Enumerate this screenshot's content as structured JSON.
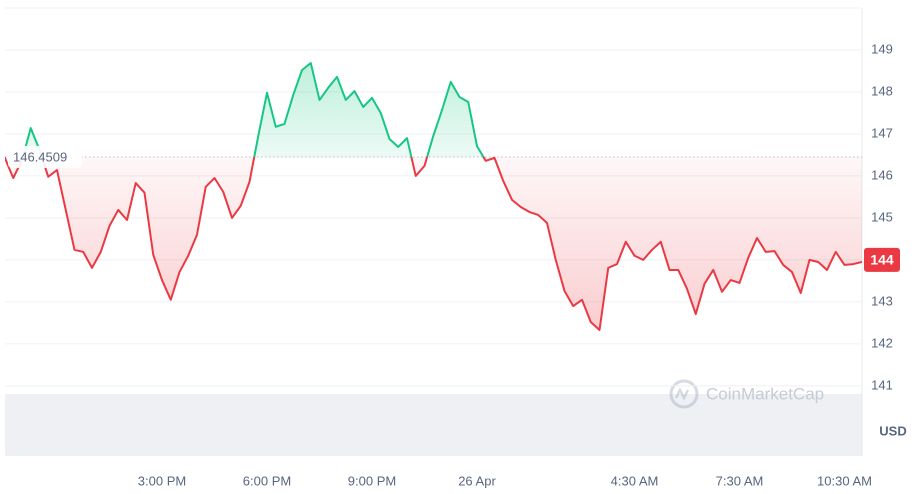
{
  "chart_data": {
    "type": "line",
    "categories": [
      null,
      null,
      null,
      null,
      null,
      null,
      null,
      null,
      null,
      null,
      null,
      null,
      null,
      null,
      null,
      null,
      null,
      null,
      "3:00 PM",
      null,
      null,
      null,
      null,
      null,
      null,
      null,
      null,
      null,
      null,
      null,
      "6:00 PM",
      null,
      null,
      null,
      null,
      null,
      null,
      null,
      null,
      null,
      null,
      null,
      "9:00 PM",
      null,
      null,
      null,
      null,
      null,
      null,
      null,
      null,
      null,
      null,
      null,
      "26 Apr",
      null,
      null,
      null,
      null,
      null,
      null,
      null,
      null,
      null,
      null,
      null,
      null,
      null,
      null,
      null,
      null,
      null,
      "4:30 AM",
      null,
      null,
      null,
      null,
      null,
      null,
      null,
      null,
      null,
      null,
      null,
      "7:30 AM",
      null,
      null,
      null,
      null,
      null,
      null,
      null,
      null,
      null,
      null,
      null,
      "10:30 AM",
      null,
      null
    ],
    "values": [
      146.45,
      145.95,
      146.38,
      147.14,
      146.62,
      145.98,
      146.14,
      145.19,
      144.24,
      144.19,
      143.81,
      144.19,
      144.81,
      145.19,
      144.95,
      145.83,
      145.6,
      144.12,
      143.52,
      143.05,
      143.71,
      144.1,
      144.6,
      145.74,
      145.95,
      145.62,
      145.0,
      145.29,
      145.86,
      146.95,
      147.98,
      147.17,
      147.24,
      147.93,
      148.52,
      148.69,
      147.81,
      148.1,
      148.36,
      147.81,
      148.02,
      147.64,
      147.86,
      147.5,
      146.88,
      146.69,
      146.9,
      146.0,
      146.24,
      146.95,
      147.57,
      148.24,
      147.88,
      147.76,
      146.71,
      146.36,
      146.43,
      145.88,
      145.43,
      145.26,
      145.14,
      145.07,
      144.88,
      144.0,
      143.26,
      142.9,
      143.05,
      142.52,
      142.33,
      143.81,
      143.9,
      144.43,
      144.1,
      144.0,
      144.24,
      144.43,
      143.76,
      143.76,
      143.31,
      142.71,
      143.43,
      143.76,
      143.24,
      143.52,
      143.45,
      144.05,
      144.52,
      144.19,
      144.21,
      143.88,
      143.71,
      143.21,
      144.0,
      143.95,
      143.76,
      144.19,
      143.88,
      143.9,
      143.95
    ],
    "baseline": 146.4509,
    "current_price": 144,
    "up_color": "#16c784",
    "down_color": "#ea3943",
    "ylim": [
      139.4,
      150
    ],
    "yticks": [
      141,
      142,
      143,
      144,
      145,
      146,
      147,
      148,
      149
    ],
    "y_label": "USD",
    "watermark": "CoinMarketCap",
    "grid": true
  }
}
